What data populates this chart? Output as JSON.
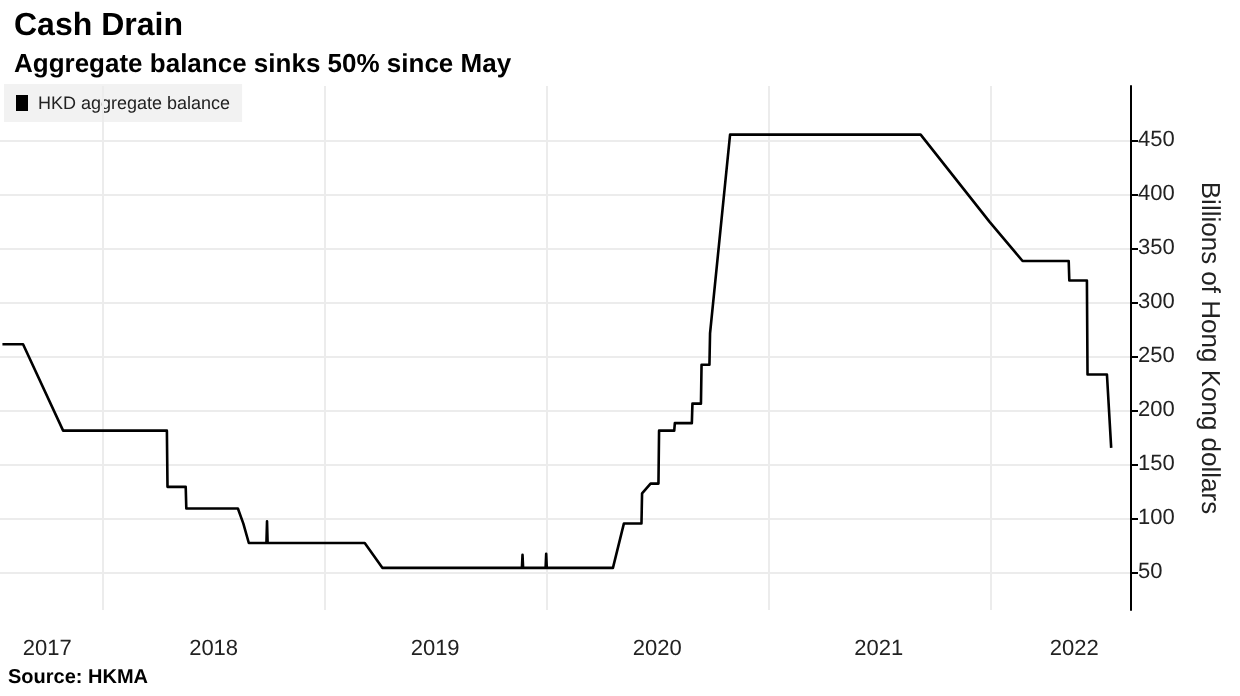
{
  "chart_data": {
    "type": "line",
    "title": "Cash Drain",
    "subtitle": "Aggregate balance sinks 50% since May",
    "ylabel": "Billions of Hong Kong dollars",
    "annotations": [
      "Source: HKMA"
    ],
    "x": [
      "2017-07-19",
      "2017-08-22",
      "2017-10-27",
      "2018-04-16",
      "2018-04-17",
      "2018-05-17",
      "2018-05-18",
      "2018-08-11",
      "2018-08-20",
      "2018-08-29",
      "2018-09-27",
      "2018-09-28",
      "2018-09-29",
      "2019-03-08",
      "2019-04-06",
      "2019-11-22",
      "2019-11-23",
      "2019-11-24",
      "2019-12-31",
      "2020-01-01",
      "2020-01-02",
      "2020-04-20",
      "2020-05-08",
      "2020-06-06",
      "2020-06-07",
      "2020-06-21",
      "2020-07-04",
      "2020-07-05",
      "2020-07-30",
      "2020-07-31",
      "2020-08-28",
      "2020-08-29",
      "2020-09-12",
      "2020-09-13",
      "2020-09-26",
      "2020-09-27",
      "2020-10-30",
      "2021-09-09",
      "2022-01-01",
      "2022-02-24",
      "2022-05-11",
      "2022-05-12",
      "2022-06-10",
      "2022-06-11",
      "2022-07-13",
      "2022-07-20"
    ],
    "series": [
      {
        "name": "HKD aggregate balance",
        "color": "#000000",
        "values": [
          261,
          261,
          181,
          181,
          129,
          129,
          109,
          109,
          95,
          77,
          77,
          97,
          77,
          77,
          54,
          54,
          66,
          54,
          54,
          67,
          54,
          54,
          95,
          95,
          123,
          132,
          132,
          181,
          181,
          188,
          188,
          206,
          206,
          242,
          242,
          271,
          455,
          455,
          374,
          338,
          338,
          320,
          320,
          233,
          233,
          165
        ]
      }
    ],
    "xlim": [
      "2017-07-15",
      "2022-08-20"
    ],
    "xticks": [
      {
        "value": "2017-10-01",
        "label": "2017"
      },
      {
        "value": "2018-01-01",
        "label": null
      },
      {
        "value": "2018-07-02",
        "label": "2018"
      },
      {
        "value": "2019-01-01",
        "label": null
      },
      {
        "value": "2019-07-02",
        "label": "2019"
      },
      {
        "value": "2020-01-01",
        "label": null
      },
      {
        "value": "2020-07-02",
        "label": "2020"
      },
      {
        "value": "2021-01-01",
        "label": null
      },
      {
        "value": "2021-07-02",
        "label": "2021"
      },
      {
        "value": "2022-01-01",
        "label": null
      },
      {
        "value": "2022-05-20",
        "label": "2022"
      }
    ],
    "ylim": [
      15,
      500
    ],
    "yticks": [
      50,
      100,
      150,
      200,
      250,
      300,
      350,
      400,
      450
    ],
    "grid": true,
    "legend": "top left",
    "marker": "none",
    "line_style": "solid"
  }
}
